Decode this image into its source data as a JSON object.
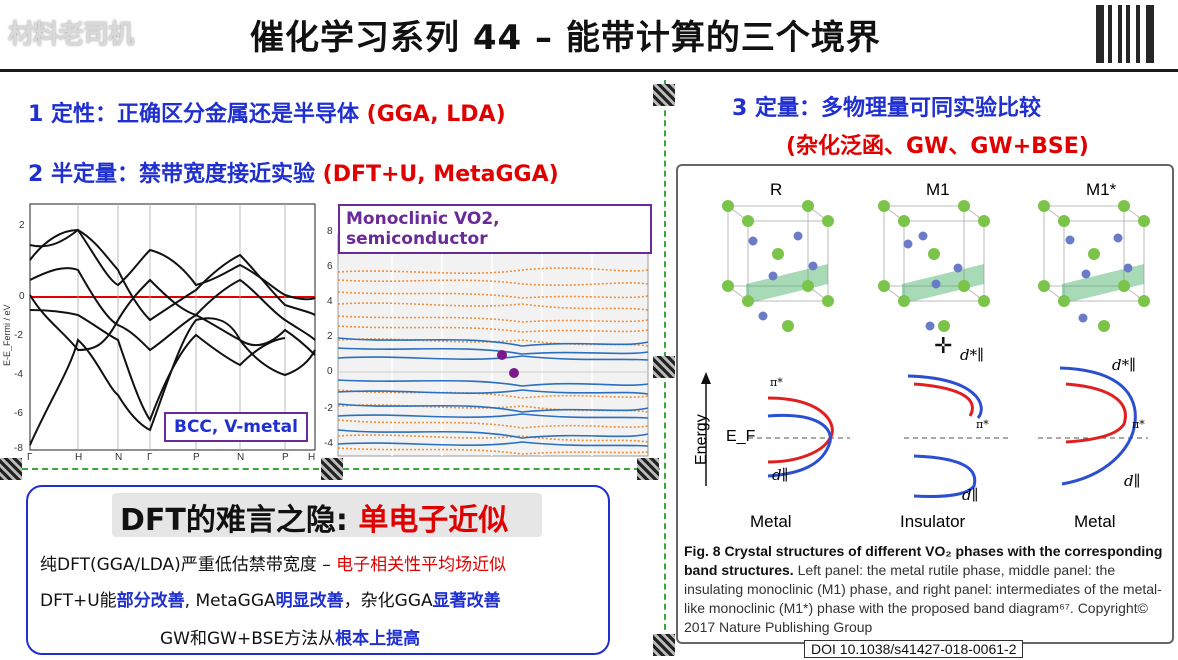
{
  "header": {
    "brand_text": "材料老司机",
    "title": "催化学习系列 44 – 能带计算的三个境界"
  },
  "left": {
    "point1_main": "1 定性：正确区分金属还是半导体",
    "point1_tag": "(GGA, LDA)",
    "point2_main": "2 半定量：禁带宽度接近实验",
    "point2_tag": "(DFT+U, MetaGGA)"
  },
  "bcc_plot": {
    "ylabel": "E-E_Fermi / eV",
    "yticks": [
      "2",
      "0",
      "-2",
      "-4",
      "-6",
      "-8"
    ],
    "xticks": [
      "Γ",
      "H",
      "N",
      "Γ",
      "P",
      "N",
      "P",
      "H"
    ],
    "label": "BCC, V-metal"
  },
  "vo2_plot": {
    "title": "Monoclinic VO2, semiconductor",
    "yticks": [
      "8",
      "6",
      "4",
      "2",
      "0",
      "-2",
      "-4"
    ]
  },
  "note": {
    "heading_black": "DFT的难言之隐:",
    "heading_red": "单电子近似",
    "line1_black": "纯DFT(GGA/LDA)严重低估禁带宽度 –",
    "line1_red": "电子相关性平均场近似",
    "line2_a": "DFT+U能",
    "line2_b": "部分改善",
    "line2_c": ", MetaGGA",
    "line2_d": "明显改善",
    "line2_e": "，杂化GGA",
    "line2_f": "显著改善",
    "line3_a": "GW和GW+BSE方法从",
    "line3_b": "根本上提高"
  },
  "right": {
    "point3_main": "3 定量：多物理量可同实验比较",
    "point3_tag": "(杂化泛函、GW、GW+BSE)"
  },
  "figure": {
    "phase_labels": [
      "R",
      "M1",
      "M1*"
    ],
    "state_labels": [
      "Metal",
      "Insulator",
      "Metal"
    ],
    "energy_label": "Energy",
    "ef_label": "E_F",
    "pi_label": "π*",
    "d_label": "d∥",
    "d_star_label": "d*∥",
    "caption_bold": "Fig. 8 Crystal structures of different VO₂ phases with the corresponding band structures.",
    "caption_rest": " Left panel: the metal rutile phase, middle panel: the insulating monoclinic (M1) phase, and right panel: intermediates of the metal-like monoclinic (M1*) phase with the proposed band diagram⁶⁷. Copyright© 2017 Nature Publishing Group",
    "doi": "DOI 10.1038/s41427-018-0061-2"
  },
  "colors": {
    "blue": "#1f2fd0",
    "red": "#e00000",
    "green": "#38a838",
    "band_blue": "#2a5fd6",
    "band_red": "#e02020"
  }
}
